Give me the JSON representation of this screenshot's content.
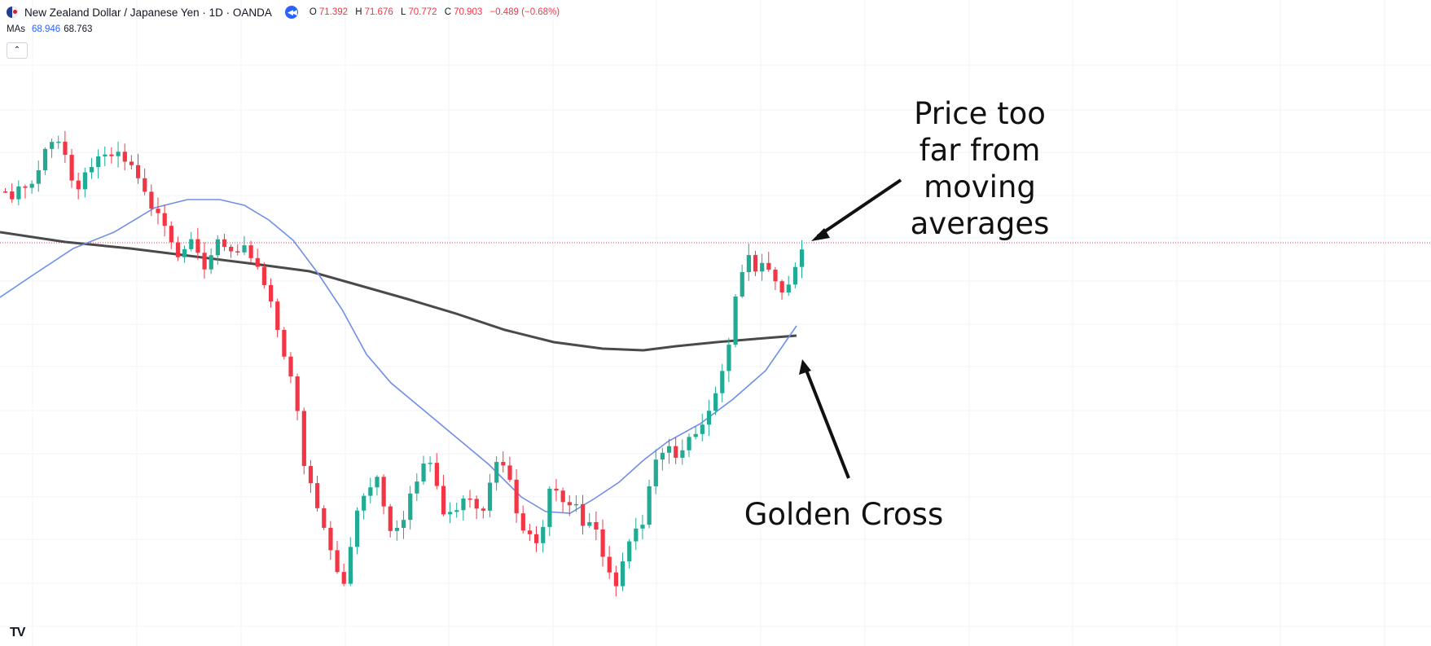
{
  "header": {
    "symbol_title": "New Zealand Dollar / Japanese Yen · 1D · OANDA",
    "ohlc": [
      {
        "key": "O",
        "value": "71.392"
      },
      {
        "key": "H",
        "value": "71.676"
      },
      {
        "key": "L",
        "value": "70.772"
      },
      {
        "key": "C",
        "value": "70.903"
      }
    ],
    "change": "−0.489 (−0.68%)"
  },
  "indicators": {
    "label": "MAs",
    "ma_fast_value": "68.946",
    "ma_slow_value": "68.763"
  },
  "icons": {
    "flag": "nzd-jpy-flag-icon",
    "replay": "replay-icon",
    "collapse": "chevron-up-icon",
    "logo": "tradingview-logo-icon"
  },
  "collapse_glyph": "⌃",
  "logo_text": "TV",
  "annotations": {
    "price_note": "Price too\nfar from\nmoving\naverages",
    "cross_note": "Golden Cross"
  },
  "colors": {
    "up": "#22ab94",
    "down": "#f23645",
    "ma_fast": "#6e8ee8",
    "ma_slow": "#4a4a4a",
    "grid": "#f0f3fa",
    "price_line": "#f23645"
  },
  "chart_data": {
    "type": "candlestick",
    "symbol": "NZDJPY",
    "interval": "1D",
    "current_price_line": 70.903,
    "grid": true,
    "series": [
      {
        "name": "MA fast",
        "value": 68.946
      },
      {
        "name": "MA slow",
        "value": 68.763
      }
    ]
  }
}
